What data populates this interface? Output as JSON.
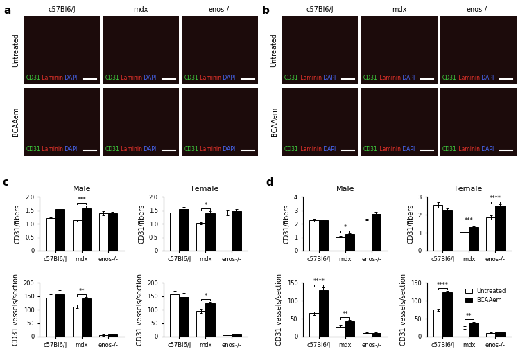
{
  "panel_labels": [
    "a",
    "b",
    "c",
    "d"
  ],
  "micrographs": [
    {
      "columns": [
        "c57Bl6/J",
        "mdx",
        "enos-/-"
      ],
      "rows": [
        "Untreated",
        "BCAAem"
      ],
      "stain_labels": [
        {
          "text": "CD31",
          "color": "#3fd13f"
        },
        {
          "text": "Laminin",
          "color": "#e8332b"
        },
        {
          "text": "DAPI",
          "color": "#4a6cff"
        }
      ]
    },
    {
      "columns": [
        "c57Bl6/J",
        "mdx",
        "enos-/-"
      ],
      "rows": [
        "Untreated",
        "BCAAem"
      ],
      "stain_labels": [
        {
          "text": "CD31",
          "color": "#3fd13f"
        },
        {
          "text": "Laminin",
          "color": "#e8332b"
        },
        {
          "text": "DAPI",
          "color": "#4a6cff"
        }
      ]
    }
  ],
  "chart_data": [
    {
      "type": "bar",
      "title": "Male",
      "y_label": "CD31/fibers",
      "categories": [
        "c57Bl6/J",
        "mdx",
        "enos-/-"
      ],
      "ylim": [
        0,
        2.0
      ],
      "yticks": [
        0,
        0.5,
        1.0,
        1.5,
        2.0
      ],
      "series": [
        {
          "name": "Untreated",
          "color": "#ffffff",
          "values": [
            1.2,
            1.12,
            1.4
          ],
          "errors": [
            0.03,
            0.05,
            0.08
          ]
        },
        {
          "name": "BCAAem",
          "color": "#000000",
          "values": [
            1.55,
            1.58,
            1.38
          ],
          "errors": [
            0.04,
            0.1,
            0.06
          ]
        }
      ],
      "significance": [
        {
          "category": "mdx",
          "label": "***"
        }
      ]
    },
    {
      "type": "bar",
      "title": "Female",
      "y_label": "CD31/fibers",
      "categories": [
        "c57Bl6/J",
        "mdx",
        "enos-/-"
      ],
      "ylim": [
        0,
        2.0
      ],
      "yticks": [
        0,
        0.5,
        1.0,
        1.5,
        2.0
      ],
      "series": [
        {
          "name": "Untreated",
          "color": "#ffffff",
          "values": [
            1.42,
            1.02,
            1.42
          ],
          "errors": [
            0.08,
            0.04,
            0.1
          ]
        },
        {
          "name": "BCAAem",
          "color": "#000000",
          "values": [
            1.55,
            1.4,
            1.47
          ],
          "errors": [
            0.07,
            0.07,
            0.07
          ]
        }
      ],
      "significance": [
        {
          "category": "mdx",
          "label": "*"
        }
      ]
    },
    {
      "type": "bar",
      "y_label": "CD31 vessels/section",
      "categories": [
        "c57Bl6/J",
        "mdx",
        "enos-/-"
      ],
      "ylim": [
        0,
        200
      ],
      "yticks": [
        0,
        50,
        100,
        150,
        200
      ],
      "series": [
        {
          "name": "Untreated",
          "color": "#ffffff",
          "values": [
            145,
            112,
            5
          ],
          "errors": [
            12,
            6,
            2
          ]
        },
        {
          "name": "BCAAem",
          "color": "#000000",
          "values": [
            157,
            142,
            7
          ],
          "errors": [
            15,
            4,
            2
          ]
        }
      ],
      "significance": [
        {
          "category": "mdx",
          "label": "**"
        }
      ]
    },
    {
      "type": "bar",
      "y_label": "CD31 vessels/section",
      "categories": [
        "c57Bl6/J",
        "mdx",
        "enos-/-"
      ],
      "ylim": [
        0,
        200
      ],
      "yticks": [
        0,
        50,
        100,
        150,
        200
      ],
      "series": [
        {
          "name": "Untreated",
          "color": "#ffffff",
          "values": [
            157,
            95,
            5
          ],
          "errors": [
            12,
            8,
            1
          ]
        },
        {
          "name": "BCAAem",
          "color": "#000000",
          "values": [
            148,
            125,
            7
          ],
          "errors": [
            15,
            5,
            1
          ]
        }
      ],
      "significance": [
        {
          "category": "mdx",
          "label": "*"
        }
      ]
    },
    {
      "type": "bar",
      "title": "Male",
      "y_label": "CD31/fibers",
      "categories": [
        "c57Bl6/J",
        "mdx",
        "enos-/-"
      ],
      "ylim": [
        0,
        4
      ],
      "yticks": [
        0,
        1,
        2,
        3,
        4
      ],
      "series": [
        {
          "name": "Untreated",
          "color": "#ffffff",
          "values": [
            2.25,
            1.05,
            2.3
          ],
          "errors": [
            0.1,
            0.05,
            0.05
          ]
        },
        {
          "name": "BCAAem",
          "color": "#000000",
          "values": [
            2.25,
            1.25,
            2.75
          ],
          "errors": [
            0.08,
            0.03,
            0.12
          ]
        }
      ],
      "significance": [
        {
          "category": "mdx",
          "label": "*"
        }
      ]
    },
    {
      "type": "bar",
      "title": "Female",
      "y_label": "CD31/fibers",
      "categories": [
        "c57Bl6/J",
        "mdx",
        "enos-/-"
      ],
      "ylim": [
        0,
        3
      ],
      "yticks": [
        0,
        1,
        2,
        3
      ],
      "series": [
        {
          "name": "Untreated",
          "color": "#ffffff",
          "values": [
            2.55,
            1.05,
            1.85
          ],
          "errors": [
            0.15,
            0.05,
            0.12
          ]
        },
        {
          "name": "BCAAem",
          "color": "#000000",
          "values": [
            2.28,
            1.32,
            2.5
          ],
          "errors": [
            0.08,
            0.04,
            0.1
          ]
        }
      ],
      "significance": [
        {
          "category": "mdx",
          "label": "***"
        },
        {
          "category": "enos-/-",
          "label": "****"
        }
      ]
    },
    {
      "type": "bar",
      "y_label": "CD31 vessels/section",
      "categories": [
        "c57Bl6/J",
        "mdx",
        "enos-/-"
      ],
      "ylim": [
        0,
        150
      ],
      "yticks": [
        0,
        50,
        100,
        150
      ],
      "series": [
        {
          "name": "Untreated",
          "color": "#ffffff",
          "values": [
            65,
            28,
            10
          ],
          "errors": [
            5,
            2,
            1
          ]
        },
        {
          "name": "BCAAem",
          "color": "#000000",
          "values": [
            130,
            43,
            10
          ],
          "errors": [
            8,
            3,
            1
          ]
        }
      ],
      "significance": [
        {
          "category": "c57Bl6/J",
          "label": "****"
        },
        {
          "category": "mdx",
          "label": "**"
        }
      ]
    },
    {
      "type": "bar",
      "y_label": "CD31 vessels/section",
      "categories": [
        "c57Bl6/J",
        "mdx",
        "enos-/-"
      ],
      "ylim": [
        0,
        150
      ],
      "yticks": [
        0,
        50,
        100,
        150
      ],
      "legend": "upper right",
      "series": [
        {
          "name": "Untreated",
          "color": "#ffffff",
          "values": [
            75,
            25,
            10
          ],
          "errors": [
            3,
            4,
            1
          ]
        },
        {
          "name": "BCAAem",
          "color": "#000000",
          "values": [
            123,
            39,
            12
          ],
          "errors": [
            5,
            2,
            1
          ]
        }
      ],
      "significance": [
        {
          "category": "c57Bl6/J",
          "label": "****"
        },
        {
          "category": "mdx",
          "label": "**"
        }
      ]
    }
  ]
}
